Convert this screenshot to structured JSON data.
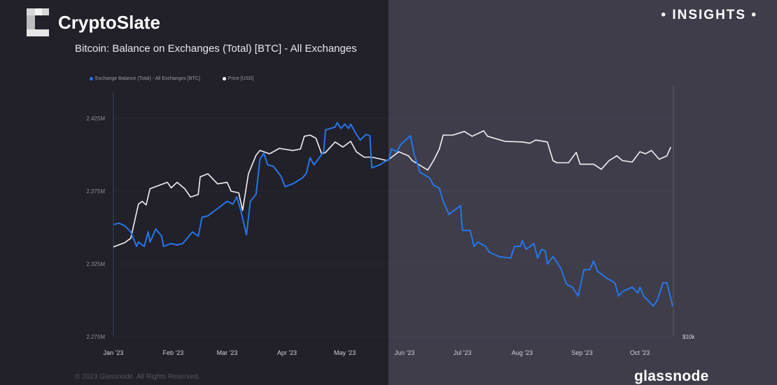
{
  "header": {
    "brand": "CryptoSlate",
    "badge": "• INSIGHTS •",
    "title": "Bitcoin: Balance on Exchanges (Total) [BTC] - All Exchanges"
  },
  "footer": {
    "copyright": "© 2023 Glassnode. All Rights Reserved.",
    "watermark": "glassnode"
  },
  "colors": {
    "balance": "#2477ea",
    "price": "#f2f2f2",
    "bg_dark": "#222029",
    "bg_light": "#3f3d4a"
  },
  "chart_data": {
    "type": "line",
    "title": "Bitcoin: Balance on Exchanges (Total) [BTC] - All Exchanges",
    "legend_position": "top-left",
    "grid": true,
    "x_ticks": [
      "Jan '23",
      "Feb '23",
      "Mar '23",
      "Apr '23",
      "May '23",
      "Jun '23",
      "Jul '23",
      "Aug '23",
      "Sep '23",
      "Oct '23"
    ],
    "y_left": {
      "ticks": [
        "2.425M",
        "2.375M",
        "2.325M",
        "2.275M"
      ],
      "tick_values": [
        2.425,
        2.375,
        2.325,
        2.275
      ],
      "unit": "M BTC",
      "range": [
        2.275,
        2.425
      ]
    },
    "y_right": {
      "scale": "log",
      "ticks": [
        "$10k"
      ],
      "tick_values": [
        10000
      ],
      "range": [
        10000,
        40000
      ]
    },
    "series": [
      {
        "name": "Exchange Balance (Total) - All Exchanges [BTC]",
        "axis": "left",
        "color": "#2477ea",
        "points": [
          [
            "2023-01-01",
            2.352
          ],
          [
            "2023-01-04",
            2.353
          ],
          [
            "2023-01-07",
            2.351
          ],
          [
            "2023-01-10",
            2.347
          ],
          [
            "2023-01-13",
            2.337
          ],
          [
            "2023-01-14",
            2.34
          ],
          [
            "2023-01-17",
            2.337
          ],
          [
            "2023-01-19",
            2.347
          ],
          [
            "2023-01-20",
            2.34
          ],
          [
            "2023-01-23",
            2.349
          ],
          [
            "2023-01-26",
            2.344
          ],
          [
            "2023-01-27",
            2.337
          ],
          [
            "2023-01-31",
            2.339
          ],
          [
            "2023-02-03",
            2.338
          ],
          [
            "2023-02-06",
            2.339
          ],
          [
            "2023-02-11",
            2.347
          ],
          [
            "2023-02-14",
            2.344
          ],
          [
            "2023-02-16",
            2.357
          ],
          [
            "2023-02-19",
            2.358
          ],
          [
            "2023-02-24",
            2.363
          ],
          [
            "2023-03-01",
            2.368
          ],
          [
            "2023-03-04",
            2.366
          ],
          [
            "2023-03-06",
            2.371
          ],
          [
            "2023-03-08",
            2.362
          ],
          [
            "2023-03-11",
            2.345
          ],
          [
            "2023-03-13",
            2.368
          ],
          [
            "2023-03-16",
            2.373
          ],
          [
            "2023-03-18",
            2.397
          ],
          [
            "2023-03-20",
            2.401
          ],
          [
            "2023-03-22",
            2.393
          ],
          [
            "2023-03-25",
            2.392
          ],
          [
            "2023-03-29",
            2.385
          ],
          [
            "2023-03-31",
            2.378
          ],
          [
            "2023-04-04",
            2.38
          ],
          [
            "2023-04-09",
            2.384
          ],
          [
            "2023-04-11",
            2.387
          ],
          [
            "2023-04-13",
            2.398
          ],
          [
            "2023-04-15",
            2.393
          ],
          [
            "2023-04-20",
            2.402
          ],
          [
            "2023-04-21",
            2.417
          ],
          [
            "2023-04-26",
            2.419
          ],
          [
            "2023-04-27",
            2.422
          ],
          [
            "2023-04-29",
            2.418
          ],
          [
            "2023-05-01",
            2.421
          ],
          [
            "2023-05-03",
            2.418
          ],
          [
            "2023-05-04",
            2.421
          ],
          [
            "2023-05-07",
            2.414
          ],
          [
            "2023-05-09",
            2.41
          ],
          [
            "2023-05-12",
            2.414
          ],
          [
            "2023-05-14",
            2.413
          ],
          [
            "2023-05-15",
            2.391
          ],
          [
            "2023-05-19",
            2.393
          ],
          [
            "2023-05-24",
            2.397
          ],
          [
            "2023-05-25",
            2.404
          ],
          [
            "2023-05-28",
            2.402
          ],
          [
            "2023-05-30",
            2.407
          ],
          [
            "2023-06-04",
            2.413
          ],
          [
            "2023-06-06",
            2.4
          ],
          [
            "2023-06-09",
            2.388
          ],
          [
            "2023-06-14",
            2.384
          ],
          [
            "2023-06-16",
            2.379
          ],
          [
            "2023-06-19",
            2.377
          ],
          [
            "2023-06-21",
            2.368
          ],
          [
            "2023-06-24",
            2.359
          ],
          [
            "2023-06-27",
            2.362
          ],
          [
            "2023-06-30",
            2.365
          ],
          [
            "2023-07-01",
            2.348
          ],
          [
            "2023-07-05",
            2.348
          ],
          [
            "2023-07-07",
            2.337
          ],
          [
            "2023-07-09",
            2.34
          ],
          [
            "2023-07-13",
            2.337
          ],
          [
            "2023-07-15",
            2.333
          ],
          [
            "2023-07-20",
            2.33
          ],
          [
            "2023-07-26",
            2.329
          ],
          [
            "2023-07-28",
            2.337
          ],
          [
            "2023-07-31",
            2.337
          ],
          [
            "2023-08-01",
            2.341
          ],
          [
            "2023-08-03",
            2.335
          ],
          [
            "2023-08-07",
            2.339
          ],
          [
            "2023-08-09",
            2.329
          ],
          [
            "2023-08-11",
            2.335
          ],
          [
            "2023-08-13",
            2.334
          ],
          [
            "2023-08-14",
            2.325
          ],
          [
            "2023-08-17",
            2.33
          ],
          [
            "2023-08-21",
            2.322
          ],
          [
            "2023-08-24",
            2.311
          ],
          [
            "2023-08-27",
            2.309
          ],
          [
            "2023-08-30",
            2.303
          ],
          [
            "2023-09-02",
            2.321
          ],
          [
            "2023-09-05",
            2.321
          ],
          [
            "2023-09-07",
            2.327
          ],
          [
            "2023-09-09",
            2.32
          ],
          [
            "2023-09-14",
            2.315
          ],
          [
            "2023-09-18",
            2.312
          ],
          [
            "2023-09-20",
            2.303
          ],
          [
            "2023-09-22",
            2.306
          ],
          [
            "2023-09-27",
            2.309
          ],
          [
            "2023-09-30",
            2.305
          ],
          [
            "2023-10-01",
            2.309
          ],
          [
            "2023-10-03",
            2.303
          ],
          [
            "2023-10-08",
            2.296
          ],
          [
            "2023-10-10",
            2.3
          ],
          [
            "2023-10-13",
            2.312
          ],
          [
            "2023-10-15",
            2.312
          ],
          [
            "2023-10-18",
            2.296
          ]
        ]
      },
      {
        "name": "Price [USD]",
        "axis": "right",
        "color": "#f2f2f2",
        "points": [
          [
            "2023-01-01",
            16400
          ],
          [
            "2023-01-07",
            16800
          ],
          [
            "2023-01-10",
            17200
          ],
          [
            "2023-01-14",
            20700
          ],
          [
            "2023-01-16",
            21000
          ],
          [
            "2023-01-18",
            20600
          ],
          [
            "2023-01-20",
            22500
          ],
          [
            "2023-01-29",
            23300
          ],
          [
            "2023-01-31",
            22600
          ],
          [
            "2023-02-03",
            23300
          ],
          [
            "2023-02-07",
            22500
          ],
          [
            "2023-02-10",
            21500
          ],
          [
            "2023-02-14",
            21800
          ],
          [
            "2023-02-15",
            24000
          ],
          [
            "2023-02-19",
            24400
          ],
          [
            "2023-02-24",
            23100
          ],
          [
            "2023-03-01",
            23300
          ],
          [
            "2023-03-03",
            22200
          ],
          [
            "2023-03-07",
            22000
          ],
          [
            "2023-03-09",
            20000
          ],
          [
            "2023-03-12",
            24400
          ],
          [
            "2023-03-16",
            27000
          ],
          [
            "2023-03-18",
            27700
          ],
          [
            "2023-03-23",
            27200
          ],
          [
            "2023-03-28",
            28000
          ],
          [
            "2023-04-04",
            27700
          ],
          [
            "2023-04-08",
            27900
          ],
          [
            "2023-04-10",
            29900
          ],
          [
            "2023-04-13",
            30100
          ],
          [
            "2023-04-16",
            29600
          ],
          [
            "2023-04-19",
            27200
          ],
          [
            "2023-04-21",
            27400
          ],
          [
            "2023-04-26",
            29000
          ],
          [
            "2023-04-30",
            28200
          ],
          [
            "2023-05-04",
            29100
          ],
          [
            "2023-05-07",
            27500
          ],
          [
            "2023-05-11",
            26700
          ],
          [
            "2023-05-15",
            26700
          ],
          [
            "2023-05-20",
            26400
          ],
          [
            "2023-05-23",
            26200
          ],
          [
            "2023-05-29",
            27500
          ],
          [
            "2023-06-03",
            26900
          ],
          [
            "2023-06-05",
            26200
          ],
          [
            "2023-06-13",
            24900
          ],
          [
            "2023-06-16",
            26200
          ],
          [
            "2023-06-19",
            27900
          ],
          [
            "2023-06-21",
            30100
          ],
          [
            "2023-06-26",
            30100
          ],
          [
            "2023-07-02",
            30700
          ],
          [
            "2023-07-06",
            29900
          ],
          [
            "2023-07-12",
            30800
          ],
          [
            "2023-07-14",
            29900
          ],
          [
            "2023-07-23",
            29100
          ],
          [
            "2023-08-01",
            29000
          ],
          [
            "2023-08-05",
            28800
          ],
          [
            "2023-08-08",
            29300
          ],
          [
            "2023-08-14",
            29000
          ],
          [
            "2023-08-17",
            26200
          ],
          [
            "2023-08-19",
            25900
          ],
          [
            "2023-08-25",
            25900
          ],
          [
            "2023-08-29",
            27400
          ],
          [
            "2023-08-31",
            25700
          ],
          [
            "2023-09-07",
            25700
          ],
          [
            "2023-09-11",
            25000
          ],
          [
            "2023-09-15",
            26200
          ],
          [
            "2023-09-19",
            26900
          ],
          [
            "2023-09-22",
            26200
          ],
          [
            "2023-09-27",
            26000
          ],
          [
            "2023-10-01",
            27500
          ],
          [
            "2023-10-04",
            27200
          ],
          [
            "2023-10-07",
            27700
          ],
          [
            "2023-10-11",
            26400
          ],
          [
            "2023-10-15",
            26900
          ],
          [
            "2023-10-17",
            28200
          ]
        ]
      }
    ]
  }
}
